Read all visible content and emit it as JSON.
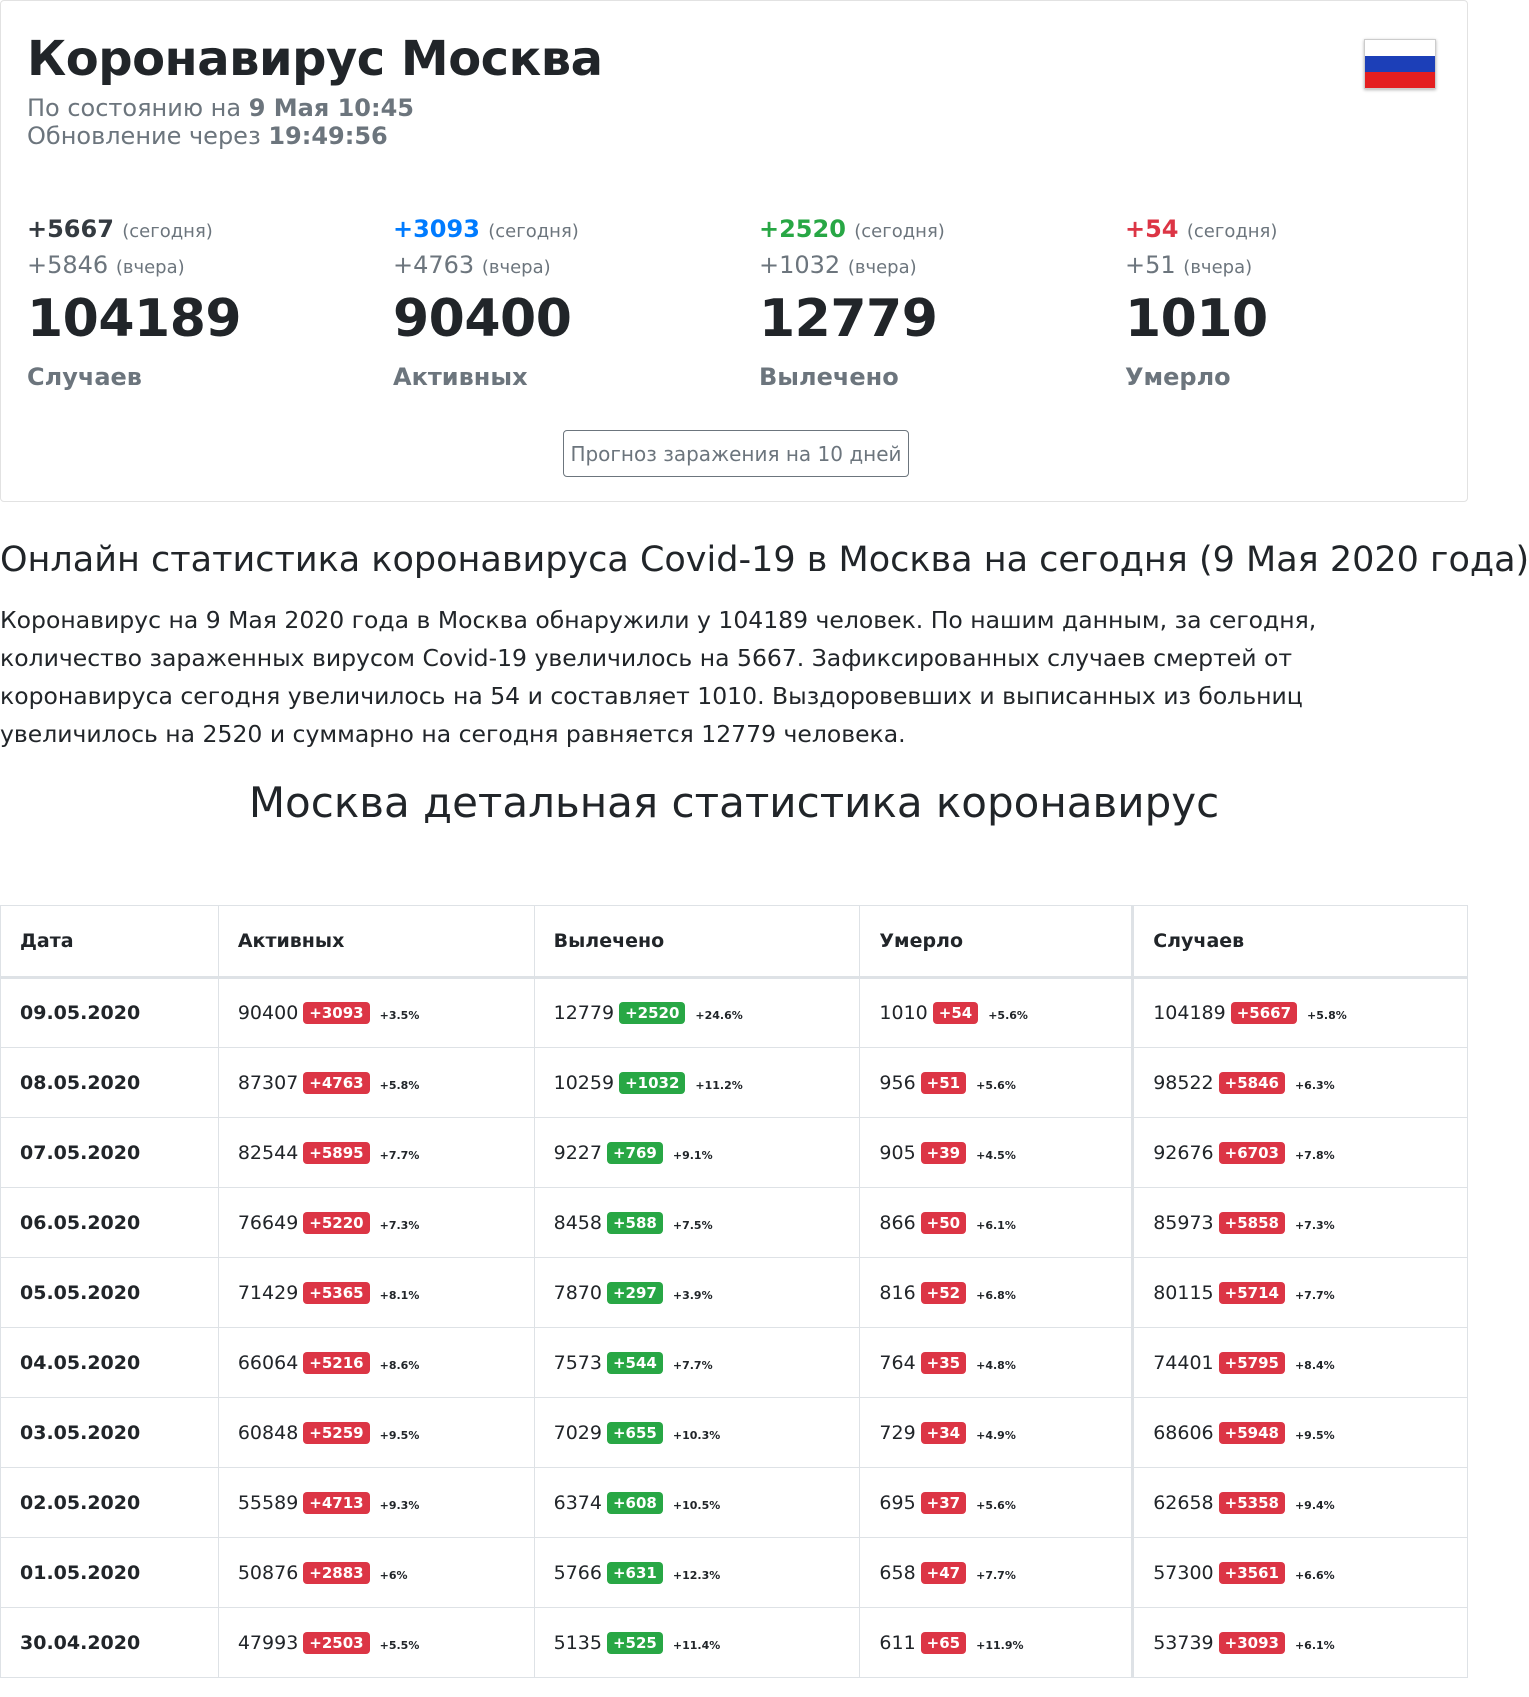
{
  "header": {
    "title": "Коронавирус Москва",
    "status_prefix": "По состоянию на",
    "status_date": "9 Мая 10:45",
    "update_prefix": "Обновление через",
    "update_time": "19:49:56",
    "flag_colors": [
      "#ffffff",
      "#1c3fb8",
      "#e41e20"
    ]
  },
  "stats": [
    {
      "today": "+5667",
      "today_label": "(сегодня)",
      "yesterday": "+5846",
      "yesterday_label": "(вчера)",
      "total": "104189",
      "name": "Случаев",
      "color": "#343a40"
    },
    {
      "today": "+3093",
      "today_label": "(сегодня)",
      "yesterday": "+4763",
      "yesterday_label": "(вчера)",
      "total": "90400",
      "name": "Активных",
      "color": "#007bff"
    },
    {
      "today": "+2520",
      "today_label": "(сегодня)",
      "yesterday": "+1032",
      "yesterday_label": "(вчера)",
      "total": "12779",
      "name": "Вылечено",
      "color": "#28a745"
    },
    {
      "today": "+54",
      "today_label": "(сегодня)",
      "yesterday": "+51",
      "yesterday_label": "(вчера)",
      "total": "1010",
      "name": "Умерло",
      "color": "#dc3545"
    }
  ],
  "forecast_button": "Прогноз заражения на 10 дней",
  "article": {
    "heading": "Онлайн статистика коронавируса Covid-19 в Москва на сегодня (9 Мая 2020 года)",
    "paragraph": "Коронавирус на 9 Мая 2020 года в Москва обнаружили у 104189 человек. По нашим данным, за сегодня, количество зараженных вирусом Covid-19 увеличилось на 5667. Зафиксированных случаев смертей от коронавируса сегодня увеличилось на 54 и составляет 1010. Выздоровевших и выписанных из больниц увеличилось на 2520 и суммарно на сегодня равняется 12779 человека.",
    "table_heading": "Москва детальная статистика коронавирус"
  },
  "table": {
    "headers": [
      "Дата",
      "Активных",
      "Вылечено",
      "Умерло",
      "Случаев"
    ],
    "rows": [
      {
        "date": "09.05.2020",
        "active": [
          "90400",
          "+3093",
          "+3.5%"
        ],
        "recovered": [
          "12779",
          "+2520",
          "+24.6%"
        ],
        "died": [
          "1010",
          "+54",
          "+5.6%"
        ],
        "cases": [
          "104189",
          "+5667",
          "+5.8%"
        ]
      },
      {
        "date": "08.05.2020",
        "active": [
          "87307",
          "+4763",
          "+5.8%"
        ],
        "recovered": [
          "10259",
          "+1032",
          "+11.2%"
        ],
        "died": [
          "956",
          "+51",
          "+5.6%"
        ],
        "cases": [
          "98522",
          "+5846",
          "+6.3%"
        ]
      },
      {
        "date": "07.05.2020",
        "active": [
          "82544",
          "+5895",
          "+7.7%"
        ],
        "recovered": [
          "9227",
          "+769",
          "+9.1%"
        ],
        "died": [
          "905",
          "+39",
          "+4.5%"
        ],
        "cases": [
          "92676",
          "+6703",
          "+7.8%"
        ]
      },
      {
        "date": "06.05.2020",
        "active": [
          "76649",
          "+5220",
          "+7.3%"
        ],
        "recovered": [
          "8458",
          "+588",
          "+7.5%"
        ],
        "died": [
          "866",
          "+50",
          "+6.1%"
        ],
        "cases": [
          "85973",
          "+5858",
          "+7.3%"
        ]
      },
      {
        "date": "05.05.2020",
        "active": [
          "71429",
          "+5365",
          "+8.1%"
        ],
        "recovered": [
          "7870",
          "+297",
          "+3.9%"
        ],
        "died": [
          "816",
          "+52",
          "+6.8%"
        ],
        "cases": [
          "80115",
          "+5714",
          "+7.7%"
        ]
      },
      {
        "date": "04.05.2020",
        "active": [
          "66064",
          "+5216",
          "+8.6%"
        ],
        "recovered": [
          "7573",
          "+544",
          "+7.7%"
        ],
        "died": [
          "764",
          "+35",
          "+4.8%"
        ],
        "cases": [
          "74401",
          "+5795",
          "+8.4%"
        ]
      },
      {
        "date": "03.05.2020",
        "active": [
          "60848",
          "+5259",
          "+9.5%"
        ],
        "recovered": [
          "7029",
          "+655",
          "+10.3%"
        ],
        "died": [
          "729",
          "+34",
          "+4.9%"
        ],
        "cases": [
          "68606",
          "+5948",
          "+9.5%"
        ]
      },
      {
        "date": "02.05.2020",
        "active": [
          "55589",
          "+4713",
          "+9.3%"
        ],
        "recovered": [
          "6374",
          "+608",
          "+10.5%"
        ],
        "died": [
          "695",
          "+37",
          "+5.6%"
        ],
        "cases": [
          "62658",
          "+5358",
          "+9.4%"
        ]
      },
      {
        "date": "01.05.2020",
        "active": [
          "50876",
          "+2883",
          "+6%"
        ],
        "recovered": [
          "5766",
          "+631",
          "+12.3%"
        ],
        "died": [
          "658",
          "+47",
          "+7.7%"
        ],
        "cases": [
          "57300",
          "+3561",
          "+6.6%"
        ]
      },
      {
        "date": "30.04.2020",
        "active": [
          "47993",
          "+2503",
          "+5.5%"
        ],
        "recovered": [
          "5135",
          "+525",
          "+11.4%"
        ],
        "died": [
          "611",
          "+65",
          "+11.9%"
        ],
        "cases": [
          "53739",
          "+3093",
          "+6.1%"
        ]
      }
    ]
  }
}
